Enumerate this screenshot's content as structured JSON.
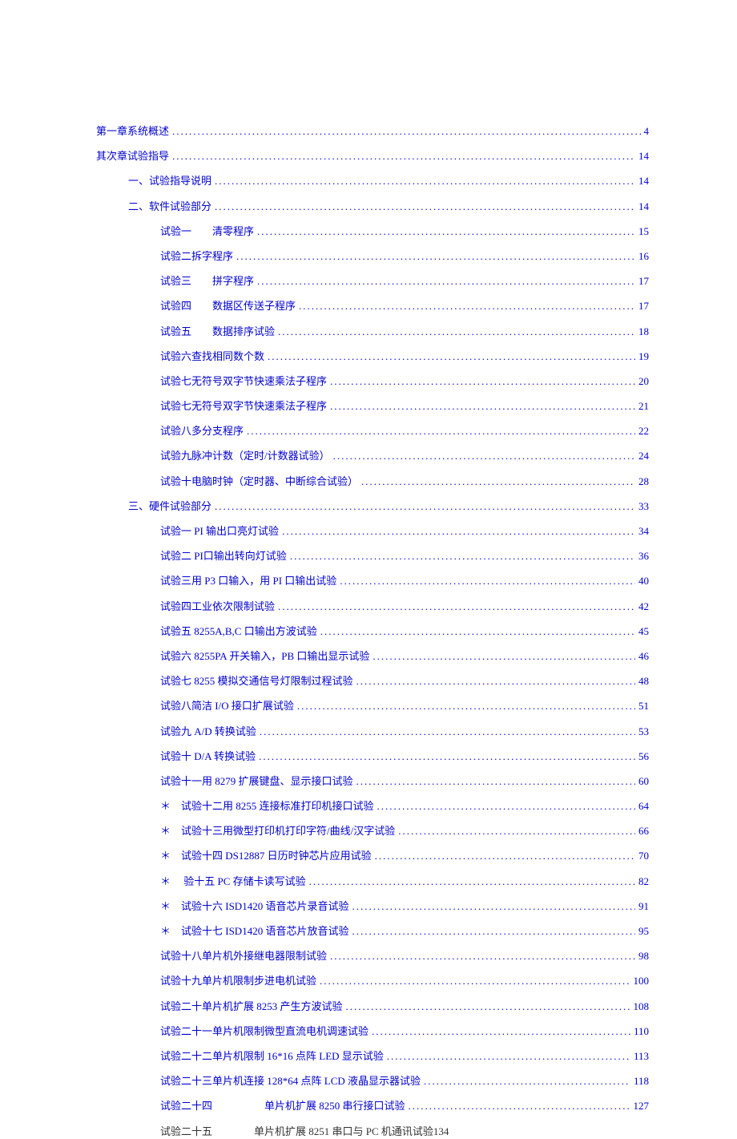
{
  "dot_leader": "..............................................................................................................................................................................",
  "text_color": "#333333",
  "link_color": "#0000cc",
  "background_color": "#ffffff",
  "font_size": 13,
  "entries": [
    {
      "label": "第一章系统概述",
      "page": "4",
      "indent": 0,
      "link": true
    },
    {
      "label": "其次章试验指导",
      "page": "14",
      "indent": 0,
      "link": true
    },
    {
      "label": "一、试验指导说明",
      "page": "14",
      "indent": 1,
      "link": true
    },
    {
      "label": "二、软件试验部分",
      "page": "14",
      "indent": 1,
      "link": true
    },
    {
      "label": "试验一　　清零程序",
      "page": "15",
      "indent": 2,
      "link": true
    },
    {
      "label": "试验二拆字程序",
      "page": "16",
      "indent": 2,
      "link": true
    },
    {
      "label": "试验三　　拼字程序",
      "page": "17",
      "indent": 2,
      "link": true
    },
    {
      "label": "试验四　　数据区传送子程序",
      "page": "17",
      "indent": 2,
      "link": true
    },
    {
      "label": "试验五　　数据排序试验",
      "page": "18",
      "indent": 2,
      "link": true
    },
    {
      "label": "试验六查找相同数个数",
      "page": "19",
      "indent": 2,
      "link": true
    },
    {
      "label": "试验七无符号双字节快速乘法子程序",
      "page": "20",
      "indent": 2,
      "link": true
    },
    {
      "label": "试验七无符号双字节快速乘法子程序",
      "page": "21",
      "indent": 2,
      "link": true
    },
    {
      "label": "试验八多分支程序",
      "page": "22",
      "indent": 2,
      "link": true
    },
    {
      "label": "试验九脉冲计数（定时/计数器试验）",
      "page": "24",
      "indent": 2,
      "link": true
    },
    {
      "label": "试验十电脑时钟（定时器、中断综合试验）",
      "page": "28",
      "indent": 2,
      "link": true
    },
    {
      "label": "三、硬件试验部分",
      "page": "33",
      "indent": 1,
      "link": true
    },
    {
      "label": "试验一 PI 输出口亮灯试验",
      "page": "34",
      "indent": 2,
      "link": true
    },
    {
      "label": "试验二 PI口输出转向灯试验",
      "page": "36",
      "indent": 2,
      "link": true
    },
    {
      "label": "试验三用 P3 口输入，用 PI 口输出试验",
      "page": "40",
      "indent": 2,
      "link": true
    },
    {
      "label": "试验四工业依次限制试验",
      "page": "42",
      "indent": 2,
      "link": true
    },
    {
      "label": "试验五 8255A,B,C 口输出方波试验",
      "page": "45",
      "indent": 2,
      "link": true
    },
    {
      "label": "试验六 8255PA 开关输入，PB 口输出显示试验",
      "page": "46",
      "indent": 2,
      "link": true
    },
    {
      "label": "试验七 8255 模拟交通信号灯限制过程试验",
      "page": "48",
      "indent": 2,
      "link": true
    },
    {
      "label": "试验八简洁 I/O 接口扩展试验",
      "page": "51",
      "indent": 2,
      "link": true
    },
    {
      "label": "试验九 A/D 转换试验",
      "page": "53",
      "indent": 2,
      "link": true
    },
    {
      "label": "试验十 D/A 转换试验",
      "page": "56",
      "indent": 2,
      "link": true
    },
    {
      "label": "试验十一用 8279 扩展键盘、显示接口试验",
      "page": "60",
      "indent": 2,
      "link": true
    },
    {
      "label": "＊　试验十二用 8255 连接标准打印机接口试验",
      "page": "64",
      "indent": 2,
      "link": true
    },
    {
      "label": "＊　试验十三用微型打印机打印字符/曲线/汉字试验",
      "page": "66",
      "indent": 2,
      "link": true
    },
    {
      "label": "＊　试验十四 DS12887 日历时钟芯片应用试验",
      "page": "70",
      "indent": 2,
      "link": true
    },
    {
      "label": "＊　 验十五 PC 存储卡读写试验",
      "page": "82",
      "indent": 2,
      "link": true
    },
    {
      "label": "＊　试验十六 ISD1420 语音芯片录音试验",
      "page": "91",
      "indent": 2,
      "link": true
    },
    {
      "label": "＊　试验十七 ISD1420 语音芯片放音试验",
      "page": "95",
      "indent": 2,
      "link": true
    },
    {
      "label": "试验十八单片机外接继电器限制试验",
      "page": "98",
      "indent": 2,
      "link": true
    },
    {
      "label": "试验十九单片机限制步进电机试验",
      "page": "100",
      "indent": 2,
      "link": true
    },
    {
      "label": "试验二十单片机扩展 8253 产生方波试验",
      "page": "108",
      "indent": 2,
      "link": true
    },
    {
      "label": "试验二十一单片机限制微型直流电机调速试验",
      "page": "110",
      "indent": 2,
      "link": true
    },
    {
      "label": "试验二十二单片机限制 16*16 点阵 LED 显示试验",
      "page": "113",
      "indent": 2,
      "link": true
    },
    {
      "label": "试验二十三单片机连接 128*64 点阵 LCD 液晶显示器试验",
      "page": "118",
      "indent": 2,
      "link": true
    },
    {
      "label": "试验二十四　　　　　单片机扩展 8250 串行接口试验",
      "page": "127",
      "indent": 2,
      "link": true
    },
    {
      "label": "试验二十五　　　　单片机扩展 8251 串口与 PC 机通讯试验134",
      "page": "",
      "indent": 2,
      "link": false,
      "no_dots": true
    }
  ]
}
